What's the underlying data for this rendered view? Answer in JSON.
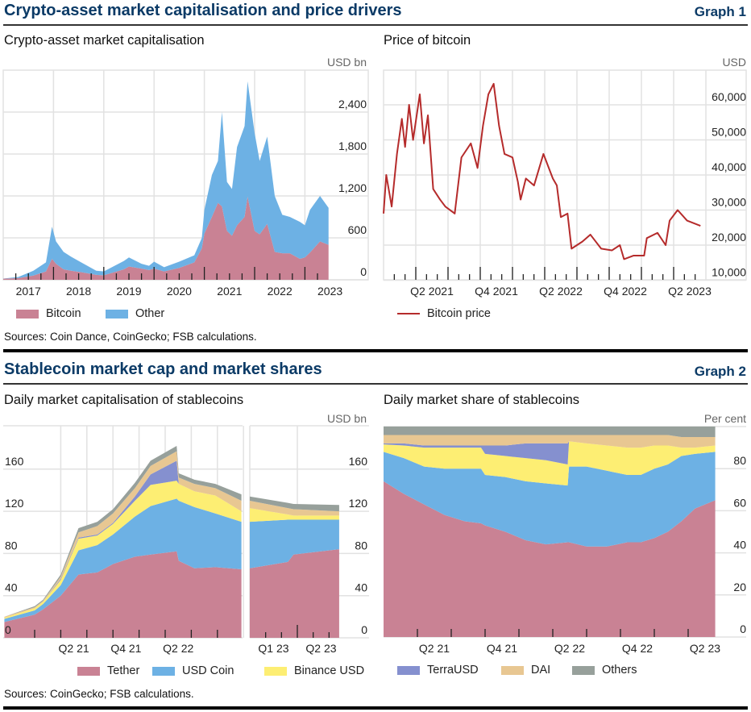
{
  "graph1": {
    "title": "Crypto-asset market capitalisation and price drivers",
    "label": "Graph 1",
    "sources": "Sources: Coin Dance, CoinGecko; FSB calculations."
  },
  "graph2": {
    "title": "Stablecoin market cap and market shares",
    "label": "Graph 2",
    "sources": "Sources: CoinGecko; FSB calculations."
  },
  "chart_data": [
    {
      "type": "area",
      "stacked": true,
      "title": "Crypto-asset market capitalisation",
      "ylabel": "USD bn",
      "ylim": [
        0,
        3000
      ],
      "yticks": [
        0,
        600,
        1200,
        1800,
        2400
      ],
      "ytick_labels": [
        "0",
        "600",
        "1,200",
        "1,800",
        "2,400"
      ],
      "xticks": [
        2017.5,
        2018.5,
        2019.5,
        2020.5,
        2021.5,
        2022.5,
        2023.5
      ],
      "xtick_labels": [
        "2017",
        "2018",
        "2019",
        "2020",
        "2021",
        "2022",
        "2023"
      ],
      "grid": true,
      "legend": "bottom",
      "x": [
        2017.0,
        2017.3,
        2017.6,
        2017.85,
        2017.97,
        2018.05,
        2018.2,
        2018.35,
        2018.55,
        2018.85,
        2019.0,
        2019.4,
        2019.5,
        2019.75,
        2019.9,
        2020.0,
        2020.2,
        2020.5,
        2020.8,
        2020.95,
        2021.0,
        2021.15,
        2021.27,
        2021.35,
        2021.45,
        2021.55,
        2021.65,
        2021.8,
        2021.86,
        2022.0,
        2022.1,
        2022.25,
        2022.4,
        2022.55,
        2022.7,
        2022.9,
        2023.0,
        2023.1,
        2023.3,
        2023.47
      ],
      "series": [
        {
          "name": "Bitcoin",
          "color": "#c98294",
          "values": [
            16,
            25,
            60,
            120,
            300,
            230,
            150,
            130,
            110,
            70,
            65,
            150,
            190,
            160,
            140,
            160,
            120,
            170,
            250,
            450,
            660,
            900,
            1100,
            1050,
            700,
            630,
            780,
            900,
            1190,
            700,
            650,
            800,
            400,
            380,
            380,
            300,
            320,
            390,
            550,
            500
          ]
        },
        {
          "name": "Other",
          "color": "#6db1e4",
          "values": [
            2,
            15,
            70,
            130,
            460,
            320,
            250,
            200,
            140,
            60,
            55,
            120,
            130,
            70,
            60,
            100,
            60,
            90,
            100,
            150,
            340,
            600,
            600,
            1350,
            700,
            670,
            1120,
            1300,
            1650,
            1400,
            1050,
            1250,
            800,
            550,
            520,
            530,
            460,
            610,
            650,
            530
          ]
        }
      ]
    },
    {
      "type": "line",
      "title": "Price of bitcoin",
      "ylabel": "USD",
      "ylim": [
        10000,
        70000
      ],
      "yticks": [
        10000,
        20000,
        30000,
        40000,
        50000,
        60000
      ],
      "ytick_labels": [
        "10,000",
        "20,000",
        "30,000",
        "40,000",
        "50,000",
        "60,000"
      ],
      "xticks": [
        2021.375,
        2021.875,
        2022.375,
        2022.875,
        2023.375
      ],
      "xtick_labels": [
        "Q2 2021",
        "Q4 2021",
        "Q2 2022",
        "Q4 2022",
        "Q2 2023"
      ],
      "grid": true,
      "legend": "bottom-left",
      "x": [
        2021.0,
        2021.021,
        2021.063,
        2021.104,
        2021.142,
        2021.167,
        2021.198,
        2021.229,
        2021.281,
        2021.313,
        2021.344,
        2021.385,
        2021.438,
        2021.479,
        2021.552,
        2021.604,
        2021.677,
        2021.729,
        2021.771,
        2021.813,
        2021.854,
        2021.896,
        2021.938,
        2022.0,
        2022.042,
        2022.063,
        2022.104,
        2022.167,
        2022.24,
        2022.313,
        2022.344,
        2022.375,
        2022.427,
        2022.458,
        2022.542,
        2022.604,
        2022.688,
        2022.771,
        2022.833,
        2022.865,
        2022.938,
        2023.021,
        2023.042,
        2023.125,
        2023.188,
        2023.219,
        2023.281,
        2023.354,
        2023.458
      ],
      "series": [
        {
          "name": "Bitcoin price",
          "color": "#b52b2b",
          "values": [
            29000,
            40000,
            31000,
            46000,
            56000,
            48000,
            60000,
            50000,
            63000,
            49000,
            57000,
            36000,
            33000,
            31000,
            29000,
            45000,
            49000,
            42000,
            54000,
            63000,
            66000,
            54000,
            46000,
            45000,
            38000,
            33000,
            39000,
            37000,
            46000,
            39000,
            37000,
            28000,
            29000,
            19000,
            21000,
            23000,
            19000,
            18500,
            20000,
            16000,
            17000,
            17000,
            22000,
            23500,
            20000,
            27000,
            30000,
            27000,
            25500
          ]
        }
      ]
    },
    {
      "type": "area",
      "stacked": true,
      "title": "Daily market capitalisation of stablecoins",
      "ylabel": "USD bn",
      "ylim": [
        0,
        200
      ],
      "yticks": [
        0,
        40,
        80,
        120,
        160
      ],
      "ytick_labels": [
        "0",
        "40",
        "80",
        "120",
        "160"
      ],
      "xticks": [
        2021.375,
        2021.875,
        2022.375,
        2023.125,
        2023.375
      ],
      "xtick_labels": [
        "Q2 21",
        "Q4 21",
        "Q2 22",
        "Q1 23",
        "Q2 23"
      ],
      "grid": true,
      "legend": "bottom",
      "x": [
        2020.71,
        2021.0,
        2021.08,
        2021.25,
        2021.42,
        2021.6,
        2021.75,
        2021.96,
        2022.11,
        2022.36,
        2022.38,
        2022.53,
        2022.73,
        2022.98,
        2023.0,
        2023.2,
        2023.23,
        2023.47
      ],
      "series": [
        {
          "name": "Tether",
          "color": "#c98294",
          "values": [
            15,
            22,
            27,
            40,
            60,
            62,
            70,
            77,
            79,
            82,
            73,
            66,
            67,
            65,
            66,
            72,
            79,
            84
          ]
        },
        {
          "name": "USD Coin",
          "color": "#6db1e4",
          "values": [
            3,
            4,
            5,
            10,
            23,
            26,
            28,
            38,
            46,
            50,
            57,
            58,
            51,
            45,
            44,
            40,
            33,
            28
          ]
        },
        {
          "name": "Binance USD",
          "color": "#fdee73",
          "values": [
            1,
            2,
            2,
            5,
            11,
            9,
            10,
            15,
            20,
            17,
            16,
            15,
            17,
            10,
            13,
            5,
            4,
            4
          ]
        },
        {
          "name": "TerraUSD",
          "color": "#8590cf",
          "values": [
            0,
            0,
            0,
            1,
            1,
            1,
            1,
            4,
            10,
            19,
            0,
            0,
            0,
            0,
            0,
            0,
            0,
            0
          ]
        },
        {
          "name": "DAI",
          "color": "#e8c792",
          "values": [
            1,
            1,
            1,
            2,
            5,
            8,
            9,
            8,
            8,
            9,
            6,
            7,
            7,
            10,
            7,
            6,
            6,
            4
          ]
        },
        {
          "name": "Others",
          "color": "#97a09b",
          "values": [
            0,
            1,
            1,
            2,
            4,
            4,
            4,
            5,
            5,
            5,
            4,
            4,
            4,
            6,
            4,
            5,
            5,
            6
          ]
        }
      ]
    },
    {
      "type": "area",
      "stacked": true,
      "title": "Daily market share of stablecoins",
      "ylabel": "Per cent",
      "ylim": [
        0,
        100
      ],
      "yticks": [
        0,
        20,
        40,
        60,
        80
      ],
      "ytick_labels": [
        "0",
        "20",
        "40",
        "60",
        "80"
      ],
      "xticks": [
        2021.375,
        2021.875,
        2022.375,
        2022.875,
        2023.375
      ],
      "xtick_labels": [
        "Q2 21",
        "Q4 21",
        "Q2 22",
        "Q4 22",
        "Q2 23"
      ],
      "grid": true,
      "legend": "bottom",
      "x": [
        2021.0,
        2021.15,
        2021.3,
        2021.45,
        2021.6,
        2021.72,
        2021.75,
        2021.9,
        2022.05,
        2022.2,
        2022.36,
        2022.37,
        2022.5,
        2022.65,
        2022.8,
        2022.9,
        2023.0,
        2023.1,
        2023.2,
        2023.3,
        2023.45
      ],
      "series": [
        {
          "name": "Tether",
          "color": "#c98294",
          "values": [
            74,
            68,
            63,
            58,
            55,
            54,
            53,
            50,
            46,
            44,
            45,
            45,
            43,
            43,
            45,
            45,
            47,
            50,
            55,
            61,
            65
          ]
        },
        {
          "name": "USD Coin",
          "color": "#6db1e4",
          "values": [
            14,
            17,
            18,
            22,
            25,
            26,
            24,
            26,
            28,
            29,
            27,
            36,
            38,
            36,
            32,
            32,
            33,
            32,
            31,
            26,
            23
          ]
        },
        {
          "name": "Binance USD",
          "color": "#fdee73",
          "values": [
            3.5,
            6,
            9,
            10,
            10,
            10,
            10,
            10,
            11,
            11,
            10,
            12,
            11,
            12,
            13,
            13,
            11,
            9,
            4,
            3,
            3
          ]
        },
        {
          "name": "TerraUSD",
          "color": "#8590cf",
          "values": [
            0.5,
            1,
            1,
            1,
            1,
            1,
            4,
            5,
            7,
            8,
            10,
            0,
            0,
            0,
            0,
            0,
            0,
            0,
            0,
            0,
            0
          ]
        },
        {
          "name": "DAI",
          "color": "#e8c792",
          "values": [
            4,
            4,
            5,
            5,
            5,
            5,
            5,
            5,
            4,
            4,
            4,
            3,
            4,
            5,
            6,
            6,
            5,
            5,
            5,
            5,
            4
          ]
        },
        {
          "name": "Others",
          "color": "#97a09b",
          "values": [
            4,
            4,
            4,
            4,
            4,
            4,
            4,
            4,
            4,
            4,
            4,
            4,
            4,
            4,
            4,
            4,
            4,
            4,
            5,
            5,
            5
          ]
        }
      ]
    }
  ]
}
